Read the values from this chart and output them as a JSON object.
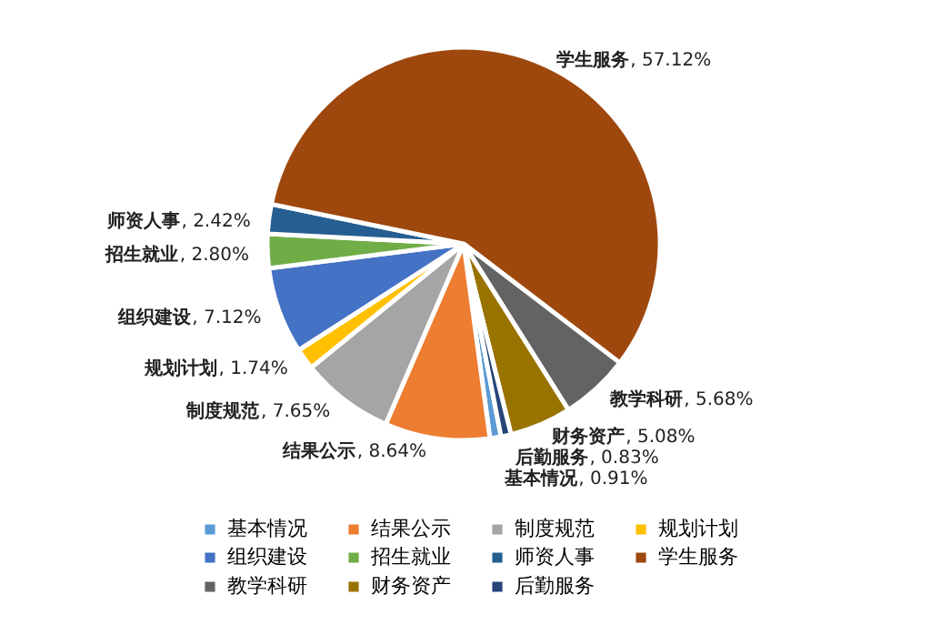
{
  "chart_data": {
    "type": "pie",
    "categories": [
      "基本情况",
      "结果公示",
      "制度规范",
      "规划计划",
      "组织建设",
      "招生就业",
      "师资人事",
      "学生服务",
      "教学科研",
      "财务资产",
      "后勤服务"
    ],
    "values": [
      0.91,
      8.64,
      7.65,
      1.74,
      7.12,
      2.8,
      2.42,
      57.12,
      5.68,
      5.08,
      0.83
    ],
    "colors": [
      "#5b9bd5",
      "#ed7d31",
      "#a5a5a5",
      "#ffc000",
      "#4472c4",
      "#70ad47",
      "#255e91",
      "#9e480e",
      "#636363",
      "#997300",
      "#264478"
    ],
    "value_labels": [
      ", 0.91%",
      ", 8.64%",
      ", 7.65%",
      ", 1.74%",
      ", 7.12%",
      ", 2.80%",
      ", 2.42%",
      ", 57.12%",
      ", 5.68%",
      ", 5.08%",
      ", 0.83%"
    ],
    "legend": "bottom"
  }
}
